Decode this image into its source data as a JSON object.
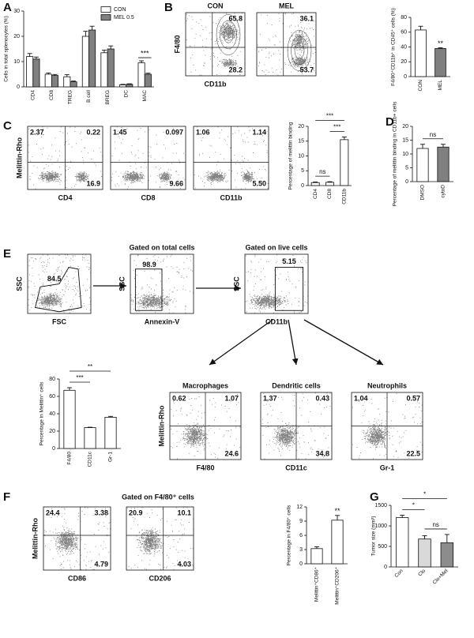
{
  "panel_labels": [
    "A",
    "B",
    "C",
    "D",
    "E",
    "F",
    "G"
  ],
  "panel_texts": {
    "f_gate_title": "Gated on F4/80⁺ cells"
  },
  "chart_data": [
    {
      "type": "bar",
      "y_label": "Cells in total splenocytes (%)",
      "categories": [
        "CD4",
        "CD8",
        "TREG",
        "B cell",
        "BREG",
        "DC",
        "MAC"
      ],
      "series": [
        {
          "name": "CON",
          "color": "#ffffff",
          "values": [
            12,
            5,
            4,
            20,
            13.5,
            0.8,
            9.5
          ],
          "errors": [
            1.2,
            0.5,
            0.8,
            2,
            1,
            0.2,
            0.8
          ]
        },
        {
          "name": "MEL 0.5",
          "color": "#808080",
          "values": [
            11,
            4.5,
            2,
            22.5,
            15,
            1,
            5
          ],
          "errors": [
            0.8,
            0.4,
            0.3,
            1.5,
            1.2,
            0.2,
            0.4
          ]
        }
      ],
      "ylim": [
        0,
        30
      ],
      "yticks": [
        0,
        10,
        20,
        30
      ],
      "legend": "upper right",
      "annotations": [
        {
          "text": "***"
        }
      ]
    },
    {
      "type": "bar",
      "y_label": "F4/80⁺CD11b⁺ in CD45⁺ cells (%)",
      "categories": [
        "CON",
        "MEL"
      ],
      "values": [
        63,
        38
      ],
      "errors": [
        5,
        1
      ],
      "colors": [
        "#ffffff",
        "#7f7f7f"
      ],
      "ylim": [
        0,
        80
      ],
      "yticks": [
        0,
        20,
        40,
        60,
        80
      ],
      "annotations": [
        {
          "text": "**"
        }
      ]
    },
    {
      "type": "bar",
      "y_label": "Percentage of melittin binding",
      "categories": [
        "CD4",
        "CD8",
        "CD11b"
      ],
      "values": [
        1,
        1.1,
        15.5
      ],
      "errors": [
        0.2,
        0.2,
        0.9
      ],
      "colors": [
        "#ffffff",
        "#ffffff",
        "#ffffff"
      ],
      "ylim": [
        0,
        20
      ],
      "yticks": [
        0,
        5,
        10,
        15,
        20
      ],
      "annotations": [
        {
          "text": "ns"
        },
        {
          "text": "***"
        },
        {
          "text": "***"
        }
      ]
    },
    {
      "type": "bar",
      "y_label": "Percentage of melittin binding in CD11b+ cells",
      "categories": [
        "DMSO",
        "cytoD"
      ],
      "values": [
        12,
        12.5
      ],
      "errors": [
        1.5,
        1
      ],
      "colors": [
        "#ffffff",
        "#808080"
      ],
      "ylim": [
        0,
        20
      ],
      "yticks": [
        0,
        5,
        10,
        15,
        20
      ],
      "annotations": [
        {
          "text": "ns"
        }
      ]
    },
    {
      "type": "bar",
      "y_label": "Percentage in Melittin⁺ cells",
      "categories": [
        "F4/80",
        "CD11c",
        "Gr-1"
      ],
      "values": [
        67,
        24,
        36
      ],
      "errors": [
        3,
        0.5,
        1
      ],
      "colors": [
        "#ffffff",
        "#ffffff",
        "#ffffff"
      ],
      "ylim": [
        0,
        80
      ],
      "yticks": [
        0,
        20,
        40,
        60,
        80
      ],
      "annotations": [
        {
          "text": "**"
        },
        {
          "text": "***"
        }
      ]
    },
    {
      "type": "bar",
      "y_label": "Percentage in F4/80⁺ cells",
      "categories": [
        "Melittin⁺CD86⁺",
        "Melittin⁺CD206⁺"
      ],
      "values": [
        3.2,
        9.2
      ],
      "errors": [
        0.4,
        1
      ],
      "colors": [
        "#ffffff",
        "#ffffff"
      ],
      "ylim": [
        0,
        12
      ],
      "yticks": [
        0,
        3,
        6,
        9,
        12
      ],
      "annotations": [
        {
          "text": "**"
        }
      ]
    },
    {
      "type": "bar",
      "y_label": "Tumor size (mm³)",
      "categories": [
        "Con",
        "Clo",
        "Clo+Mel"
      ],
      "values": [
        1200,
        680,
        590
      ],
      "errors": [
        60,
        80,
        200
      ],
      "colors": [
        "#ffffff",
        "#d9d9d9",
        "#8c8c8c"
      ],
      "ylim": [
        0,
        1500
      ],
      "yticks": [
        0,
        500,
        1000,
        1500
      ],
      "annotations": [
        {
          "text": "*"
        },
        {
          "text": "*"
        },
        {
          "text": "ns"
        }
      ]
    }
  ],
  "flow_plots": [
    {
      "title": "CON",
      "y_label": "F4/80",
      "x_label": "CD11b",
      "labels": [
        "65.8",
        "28.2"
      ]
    },
    {
      "title": "MEL",
      "labels": [
        "36.1",
        "53.7"
      ]
    },
    {
      "y_label": "Melittin-Rho",
      "x_label": "CD4",
      "labels": [
        "2.37",
        "0.22",
        "16.9"
      ]
    },
    {
      "x_label": "CD8",
      "labels": [
        "1.45",
        "0.097",
        "9.66"
      ]
    },
    {
      "x_label": "CD11b",
      "labels": [
        "1.06",
        "1.14",
        "5.50"
      ]
    },
    {
      "y_label": "SSC",
      "x_label": "FSC",
      "labels": [
        "84.5"
      ]
    },
    {
      "title": "Gated on total cells",
      "y_label": "SSC",
      "x_label": "Annexin-V",
      "labels": [
        "98.9"
      ]
    },
    {
      "title": "Gated on live cells",
      "y_label": "SSC",
      "x_label": "CD11b",
      "labels": [
        "5.15"
      ]
    },
    {
      "title": "Macrophages",
      "y_label": "Melittin-Rho",
      "x_label": "F4/80",
      "labels": [
        "0.62",
        "1.07",
        "24.6"
      ]
    },
    {
      "title": "Dendritic cells",
      "x_label": "CD11c",
      "labels": [
        "1.37",
        "0.43",
        "34.8"
      ]
    },
    {
      "title": "Neutrophils",
      "x_label": "Gr-1",
      "labels": [
        "1.04",
        "0.57",
        "22.5"
      ]
    },
    {
      "y_label": "Melittin-Rho",
      "x_label": "CD86",
      "labels": [
        "24.4",
        "3.38",
        "4.79"
      ]
    },
    {
      "x_label": "CD206",
      "labels": [
        "20.9",
        "10.1",
        "4.03"
      ]
    }
  ]
}
